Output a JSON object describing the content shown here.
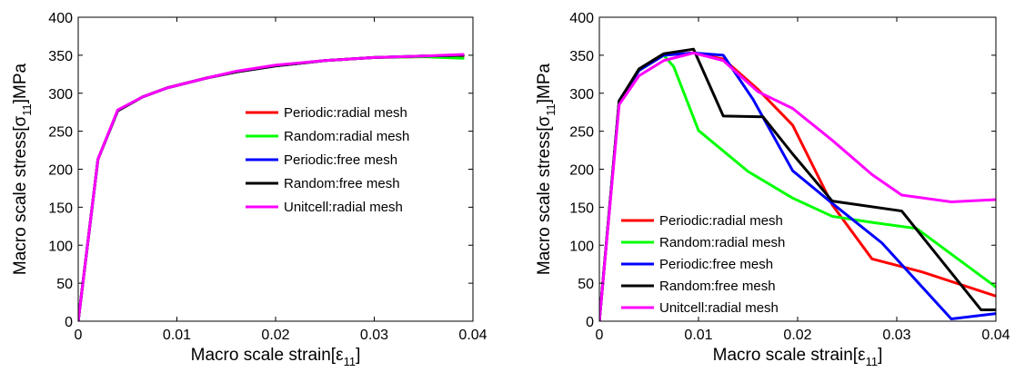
{
  "series_colors": {
    "Periodic:radial mesh": "#ff0000",
    "Random:radial mesh": "#00ff00",
    "Periodic:free mesh": "#0000ff",
    "Random:free mesh": "#000000",
    "Unitcell:radial mesh": "#ff00ff"
  },
  "chart_data": [
    {
      "type": "line",
      "xlabel": "Macro scale strain[ε11]",
      "xlabel_parts": {
        "main": "Macro scale strain[ε",
        "sub": "11",
        "end": "]"
      },
      "ylabel": "Macro scale stress[σ11]MPa",
      "ylabel_parts": {
        "main": "Macro scale stress[σ",
        "sub": "11",
        "end": "]MPa"
      },
      "xlim": [
        0,
        0.04
      ],
      "ylim": [
        0,
        400
      ],
      "xticks": [
        0,
        0.01,
        0.02,
        0.03,
        0.04
      ],
      "xtick_labels": [
        "0",
        "0.01",
        "0.02",
        "0.03",
        "0.04"
      ],
      "yticks": [
        0,
        50,
        100,
        150,
        200,
        250,
        300,
        350,
        400
      ],
      "ytick_labels": [
        "0",
        "50",
        "100",
        "150",
        "200",
        "250",
        "300",
        "350",
        "400"
      ],
      "grid": false,
      "legend_position": "right",
      "series": [
        {
          "name": "Periodic:radial mesh",
          "x": [
            0,
            0.002,
            0.004,
            0.0065,
            0.009,
            0.013,
            0.016,
            0.02,
            0.025,
            0.03,
            0.035,
            0.039
          ],
          "y": [
            0,
            213,
            277,
            295,
            307,
            320,
            328,
            336,
            343,
            347,
            348,
            349
          ]
        },
        {
          "name": "Random:radial mesh",
          "x": [
            0,
            0.002,
            0.004,
            0.0065,
            0.009,
            0.013,
            0.016,
            0.02,
            0.025,
            0.03,
            0.035,
            0.039
          ],
          "y": [
            0,
            213,
            277,
            295,
            307,
            320,
            328,
            336,
            343,
            347,
            348,
            346
          ]
        },
        {
          "name": "Periodic:free mesh",
          "x": [
            0,
            0.002,
            0.004,
            0.0065,
            0.009,
            0.013,
            0.016,
            0.02,
            0.025,
            0.03,
            0.035,
            0.039
          ],
          "y": [
            0,
            213,
            277,
            295,
            307,
            320,
            328,
            336,
            343,
            347,
            349,
            350
          ]
        },
        {
          "name": "Random:free mesh",
          "x": [
            0,
            0.002,
            0.004,
            0.0065,
            0.009,
            0.013,
            0.016,
            0.02,
            0.025,
            0.03,
            0.035,
            0.039
          ],
          "y": [
            0,
            213,
            277,
            295,
            307,
            320,
            328,
            336,
            343,
            347,
            349,
            350
          ]
        },
        {
          "name": "Unitcell:radial mesh",
          "x": [
            0,
            0.002,
            0.004,
            0.0065,
            0.009,
            0.013,
            0.016,
            0.02,
            0.025,
            0.03,
            0.035,
            0.039
          ],
          "y": [
            0,
            213,
            278,
            295,
            307,
            320,
            329,
            337,
            343,
            347,
            349,
            351
          ]
        }
      ]
    },
    {
      "type": "line",
      "xlabel": "Macro scale strain[ε11]",
      "xlabel_parts": {
        "main": "Macro scale strain[ε",
        "sub": "11",
        "end": "]"
      },
      "ylabel": "Macro scale stress[σ11]MPa",
      "ylabel_parts": {
        "main": "Macro scale stress[σ",
        "sub": "11",
        "end": "]MPa"
      },
      "xlim": [
        0,
        0.04
      ],
      "ylim": [
        0,
        400
      ],
      "xticks": [
        0,
        0.01,
        0.02,
        0.03,
        0.04
      ],
      "xtick_labels": [
        "0",
        "0.01",
        "0.02",
        "0.03",
        "0.04"
      ],
      "yticks": [
        0,
        50,
        100,
        150,
        200,
        250,
        300,
        350,
        400
      ],
      "ytick_labels": [
        "0",
        "50",
        "100",
        "150",
        "200",
        "250",
        "300",
        "350",
        "400"
      ],
      "grid": false,
      "legend_position": "bottom-left",
      "series": [
        {
          "name": "Periodic:radial mesh",
          "x": [
            0,
            0.002,
            0.004,
            0.0065,
            0.0095,
            0.0125,
            0.016,
            0.0195,
            0.0235,
            0.0275,
            0.0325,
            0.04
          ],
          "y": [
            0,
            290,
            330,
            350,
            353,
            345,
            305,
            258,
            153,
            82,
            65,
            33
          ]
        },
        {
          "name": "Random:radial mesh",
          "x": [
            0,
            0.002,
            0.004,
            0.0065,
            0.0075,
            0.01,
            0.015,
            0.0195,
            0.0235,
            0.0275,
            0.032,
            0.04
          ],
          "y": [
            0,
            290,
            330,
            350,
            335,
            251,
            197,
            162,
            138,
            130,
            122,
            45
          ]
        },
        {
          "name": "Periodic:free mesh",
          "x": [
            0,
            0.002,
            0.004,
            0.0065,
            0.0095,
            0.0125,
            0.0155,
            0.0195,
            0.0235,
            0.0285,
            0.0355,
            0.04
          ],
          "y": [
            0,
            290,
            330,
            350,
            353,
            350,
            292,
            198,
            155,
            103,
            3,
            10
          ]
        },
        {
          "name": "Random:free mesh",
          "x": [
            0,
            0.002,
            0.004,
            0.0065,
            0.0095,
            0.0125,
            0.0165,
            0.0195,
            0.0235,
            0.0305,
            0.0385,
            0.04
          ],
          "y": [
            0,
            290,
            332,
            352,
            358,
            270,
            269,
            220,
            158,
            145,
            15,
            15
          ]
        },
        {
          "name": "Unitcell:radial mesh",
          "x": [
            0,
            0.002,
            0.004,
            0.0065,
            0.0095,
            0.0125,
            0.016,
            0.0195,
            0.0235,
            0.0275,
            0.0305,
            0.0355,
            0.04
          ],
          "y": [
            0,
            285,
            323,
            343,
            353,
            343,
            302,
            280,
            238,
            193,
            166,
            157,
            160
          ]
        }
      ]
    }
  ]
}
